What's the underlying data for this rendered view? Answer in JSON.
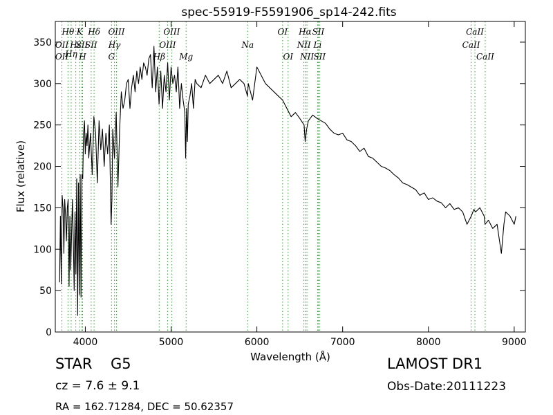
{
  "chart_data": {
    "type": "line",
    "title": "spec-55919-F5591906_sp14-242.fits",
    "xlabel": "Wavelength (Å)",
    "ylabel": "Flux (relative)",
    "xlim": [
      3650,
      9130
    ],
    "ylim": [
      0,
      375
    ],
    "xticks": [
      4000,
      5000,
      6000,
      7000,
      8000,
      9000
    ],
    "yticks": [
      0,
      50,
      100,
      150,
      200,
      250,
      300,
      350
    ],
    "grid": false,
    "line_color": "#000000",
    "marker_color": "#2ca02c",
    "series": [
      {
        "x": [
          3700,
          3710,
          3720,
          3730,
          3740,
          3750,
          3760,
          3770,
          3780,
          3790,
          3800,
          3810,
          3820,
          3830,
          3840,
          3850,
          3860,
          3870,
          3880,
          3890,
          3900,
          3910,
          3920,
          3930,
          3940,
          3950,
          3960,
          3970,
          3980,
          3990,
          4000,
          4010,
          4020,
          4030,
          4040,
          4060,
          4080,
          4100,
          4120,
          4140,
          4160,
          4180,
          4200,
          4220,
          4240,
          4260,
          4280,
          4300,
          4310,
          4320,
          4340,
          4360,
          4380,
          4400,
          4420,
          4440,
          4460,
          4480,
          4500,
          4520,
          4540,
          4560,
          4580,
          4600,
          4620,
          4640,
          4660,
          4680,
          4700,
          4720,
          4740,
          4760,
          4780,
          4800,
          4820,
          4840,
          4860,
          4880,
          4900,
          4920,
          4940,
          4960,
          4980,
          5000,
          5020,
          5040,
          5060,
          5080,
          5100,
          5120,
          5140,
          5160,
          5170,
          5180,
          5190,
          5200,
          5220,
          5240,
          5260,
          5280,
          5300,
          5350,
          5400,
          5450,
          5500,
          5550,
          5600,
          5650,
          5700,
          5750,
          5800,
          5850,
          5890,
          5900,
          5950,
          6000,
          6050,
          6100,
          6150,
          6200,
          6250,
          6300,
          6350,
          6400,
          6450,
          6500,
          6550,
          6563,
          6580,
          6600,
          6650,
          6700,
          6750,
          6800,
          6850,
          6900,
          6950,
          7000,
          7050,
          7100,
          7150,
          7200,
          7250,
          7300,
          7350,
          7400,
          7450,
          7500,
          7550,
          7600,
          7650,
          7700,
          7750,
          7800,
          7850,
          7900,
          7950,
          8000,
          8050,
          8100,
          8150,
          8200,
          8250,
          8300,
          8350,
          8400,
          8450,
          8500,
          8530,
          8550,
          8600,
          8650,
          8660,
          8700,
          8750,
          8800,
          8850,
          8880,
          8900,
          8950,
          9000,
          9020
        ],
        "y": [
          60,
          140,
          58,
          165,
          150,
          95,
          160,
          140,
          110,
          150,
          160,
          55,
          140,
          75,
          120,
          160,
          110,
          50,
          145,
          70,
          185,
          20,
          180,
          45,
          190,
          42,
          190,
          185,
          240,
          255,
          215,
          240,
          225,
          250,
          210,
          240,
          190,
          260,
          240,
          180,
          255,
          220,
          245,
          200,
          240,
          215,
          250,
          130,
          160,
          245,
          210,
          265,
          175,
          245,
          290,
          270,
          280,
          300,
          305,
          270,
          295,
          310,
          290,
          315,
          300,
          320,
          305,
          325,
          320,
          310,
          330,
          335,
          295,
          345,
          290,
          320,
          275,
          315,
          270,
          310,
          290,
          325,
          280,
          320,
          300,
          310,
          290,
          320,
          270,
          300,
          280,
          265,
          210,
          270,
          230,
          275,
          285,
          300,
          270,
          305,
          300,
          295,
          310,
          300,
          305,
          310,
          300,
          315,
          295,
          300,
          305,
          300,
          285,
          300,
          280,
          320,
          310,
          300,
          295,
          290,
          285,
          280,
          270,
          260,
          265,
          258,
          250,
          230,
          245,
          255,
          262,
          258,
          255,
          252,
          245,
          240,
          238,
          240,
          232,
          230,
          225,
          218,
          222,
          212,
          210,
          205,
          200,
          198,
          195,
          190,
          186,
          180,
          178,
          175,
          172,
          165,
          168,
          160,
          162,
          158,
          156,
          150,
          155,
          148,
          150,
          145,
          130,
          140,
          148,
          145,
          150,
          140,
          130,
          135,
          125,
          130,
          95,
          130,
          145,
          140,
          130,
          140
        ]
      }
    ],
    "lines": [
      {
        "name": "Hθ",
        "x": 3798,
        "row": 1
      },
      {
        "name": "OII",
        "x": 3727,
        "row": 2
      },
      {
        "name": "OII",
        "x": 3727,
        "row": 4
      },
      {
        "name": "Hη",
        "x": 3835,
        "row": 3
      },
      {
        "name": "Hε",
        "x": 3889,
        "row": 2
      },
      {
        "name": "K",
        "x": 3934,
        "row": 1
      },
      {
        "name": "SII",
        "x": 3960,
        "row": 2
      },
      {
        "name": "H",
        "x": 3968,
        "row": 4
      },
      {
        "name": "Hδ",
        "x": 4102,
        "row": 1
      },
      {
        "name": "SII",
        "x": 4068,
        "row": 2
      },
      {
        "name": "OIII",
        "x": 4363,
        "row": 1
      },
      {
        "name": "Hγ",
        "x": 4340,
        "row": 2
      },
      {
        "name": "G",
        "x": 4305,
        "row": 4
      },
      {
        "name": "OIII",
        "x": 5007,
        "row": 1
      },
      {
        "name": "OIII",
        "x": 4959,
        "row": 2
      },
      {
        "name": "Hβ",
        "x": 4861,
        "row": 4
      },
      {
        "name": "Mg",
        "x": 5175,
        "row": 4
      },
      {
        "name": "Na",
        "x": 5893,
        "row": 2
      },
      {
        "name": "OI",
        "x": 6300,
        "row": 1
      },
      {
        "name": "OI",
        "x": 6364,
        "row": 4
      },
      {
        "name": "Hα",
        "x": 6563,
        "row": 1
      },
      {
        "name": "SII",
        "x": 6716,
        "row": 1
      },
      {
        "name": "NII",
        "x": 6548,
        "row": 2
      },
      {
        "name": "Li",
        "x": 6708,
        "row": 2
      },
      {
        "name": "NII",
        "x": 6584,
        "row": 4
      },
      {
        "name": "SII",
        "x": 6731,
        "row": 4
      },
      {
        "name": "CaII",
        "x": 8542,
        "row": 1
      },
      {
        "name": "CaII",
        "x": 8498,
        "row": 2
      },
      {
        "name": "CaII",
        "x": 8662,
        "row": 4
      }
    ]
  },
  "info": {
    "object_class": "STAR",
    "subclass": "G5",
    "survey": "LAMOST DR1",
    "cz": "cz = 7.6 ± 9.1",
    "obs_date": "Obs-Date:20111223",
    "coords": "RA = 162.71284, DEC = 50.62357"
  }
}
